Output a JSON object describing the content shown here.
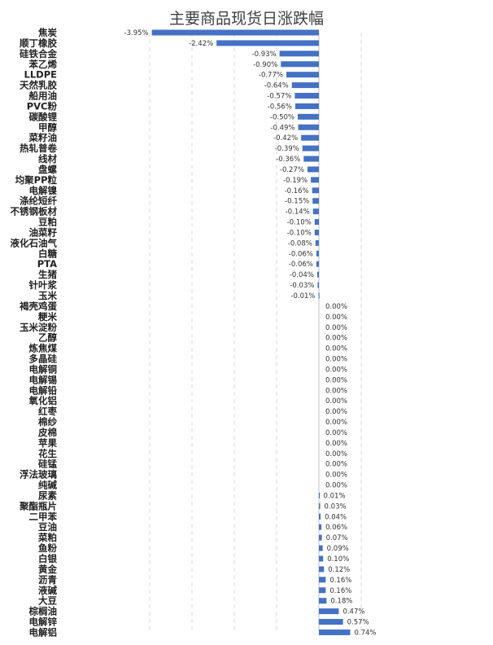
{
  "chart_data": {
    "type": "bar",
    "orientation": "horizontal",
    "title": "主要商品现货日涨跌幅",
    "xlabel": "",
    "ylabel": "",
    "xlim": [
      -0.05,
      0.015
    ],
    "grid": "vertical-dashed",
    "legend": "none",
    "bar_color": "#4472C4",
    "categories": [
      "焦炭",
      "顺丁橡胶",
      "硅铁合金",
      "苯乙烯",
      "LLDPE",
      "天然乳胶",
      "船用油",
      "PVC粉",
      "碳酸锂",
      "甲醇",
      "菜籽油",
      "热轧普卷",
      "线材",
      "盘螺",
      "均聚PP粒",
      "电解镍",
      "涤纶短纤",
      "不锈钢板材",
      "豆粕",
      "油菜籽",
      "液化石油气",
      "白糖",
      "PTA",
      "生猪",
      "针叶浆",
      "玉米",
      "褐壳鸡蛋",
      "粳米",
      "玉米淀粉",
      "乙醇",
      "炼焦煤",
      "多晶硅",
      "电解铜",
      "电解锡",
      "电解铅",
      "氧化铝",
      "红枣",
      "棉纱",
      "皮棉",
      "苹果",
      "花生",
      "硅锰",
      "浮法玻璃",
      "纯碱",
      "尿素",
      "聚酯瓶片",
      "二甲苯",
      "豆油",
      "菜粕",
      "鱼粉",
      "白银",
      "黄金",
      "沥青",
      "液碱",
      "大豆",
      "棕榈油",
      "电解锌",
      "电解铝"
    ],
    "values": [
      -0.0395,
      -0.0242,
      -0.0093,
      -0.009,
      -0.0077,
      -0.0064,
      -0.0057,
      -0.0056,
      -0.005,
      -0.0049,
      -0.0042,
      -0.0039,
      -0.0036,
      -0.0027,
      -0.0019,
      -0.0016,
      -0.0015,
      -0.0014,
      -0.001,
      -0.001,
      -0.0008,
      -0.0006,
      -0.0006,
      -0.0004,
      -0.0003,
      -0.0001,
      0,
      0,
      0,
      0,
      0,
      0,
      0,
      0,
      0,
      0,
      0,
      0,
      0,
      0,
      0,
      0,
      0,
      0,
      0.0001,
      0.0003,
      0.0004,
      0.0006,
      0.0007,
      0.0009,
      0.001,
      0.0012,
      0.0016,
      0.0016,
      0.0018,
      0.0047,
      0.0057,
      0.0074
    ],
    "data_labels": [
      "-3.95%",
      "-2.42%",
      "-0.93%",
      "-0.90%",
      "-0.77%",
      "-0.64%",
      "-0.57%",
      "-0.56%",
      "-0.50%",
      "-0.49%",
      "-0.42%",
      "-0.39%",
      "-0.36%",
      "-0.27%",
      "-0.19%",
      "-0.16%",
      "-0.15%",
      "-0.14%",
      "-0.10%",
      "-0.10%",
      "-0.08%",
      "-0.06%",
      "-0.06%",
      "-0.04%",
      "-0.03%",
      "-0.01%",
      "0.00%",
      "0.00%",
      "0.00%",
      "0.00%",
      "0.00%",
      "0.00%",
      "0.00%",
      "0.00%",
      "0.00%",
      "0.00%",
      "0.00%",
      "0.00%",
      "0.00%",
      "0.00%",
      "0.00%",
      "0.00%",
      "0.00%",
      "0.00%",
      "0.01%",
      "0.03%",
      "0.04%",
      "0.06%",
      "0.07%",
      "0.09%",
      "0.10%",
      "0.12%",
      "0.16%",
      "0.16%",
      "0.18%",
      "0.47%",
      "0.57%",
      "0.74%"
    ]
  }
}
